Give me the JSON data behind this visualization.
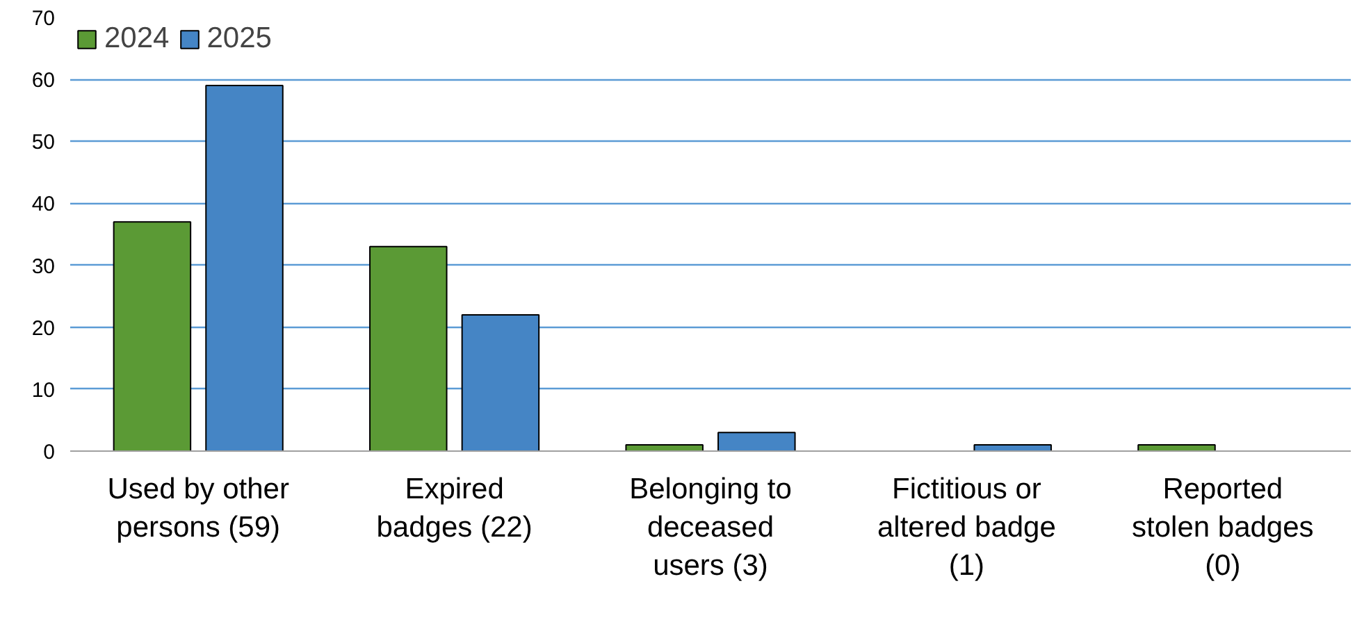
{
  "chart_data": {
    "type": "bar",
    "categories": [
      "Used by other\npersons (59)",
      "Expired\nbadges (22)",
      "Belonging to\ndeceased\nusers (3)",
      "Fictitious or\naltered badge\n(1)",
      "Reported\nstolen badges\n(0)"
    ],
    "series": [
      {
        "name": "2024",
        "color": "#5b9a35",
        "values": [
          37,
          33,
          1,
          0,
          1
        ]
      },
      {
        "name": "2025",
        "color": "#4585c5",
        "values": [
          59,
          22,
          3,
          1,
          0
        ]
      }
    ],
    "ylim": [
      0,
      70
    ],
    "yticks": [
      0,
      10,
      20,
      30,
      40,
      50,
      60,
      70
    ],
    "grid": "y",
    "legend": "top left"
  }
}
